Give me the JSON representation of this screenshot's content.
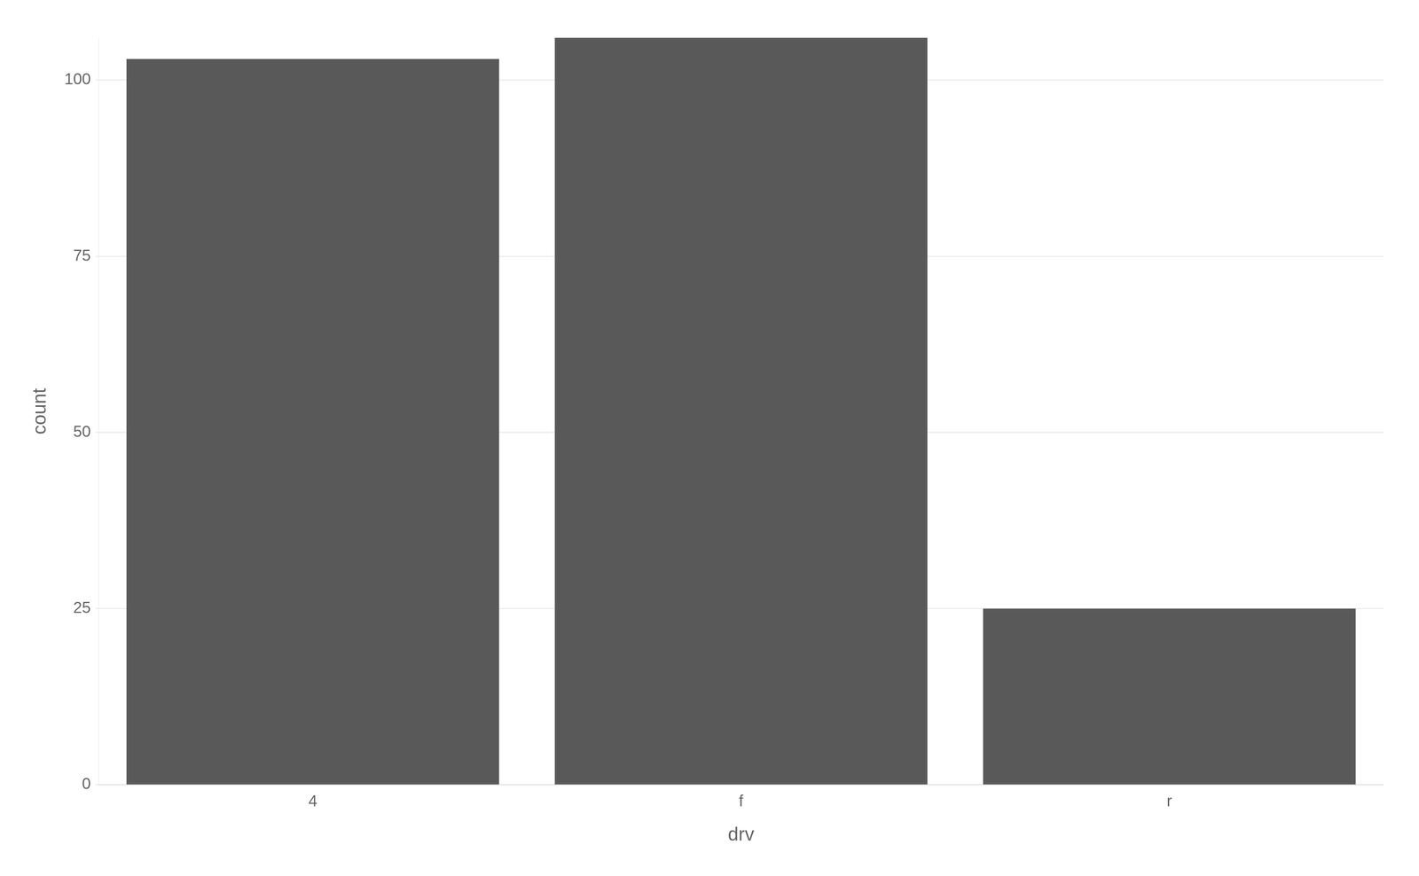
{
  "chart_data": {
    "type": "bar",
    "categories": [
      "4",
      "f",
      "r"
    ],
    "values": [
      103,
      106,
      25
    ],
    "color": "#595959",
    "xlabel": "drv",
    "ylabel": "count",
    "ylim": [
      0,
      106
    ],
    "yticks": [
      0,
      25,
      50,
      75,
      100
    ],
    "grid": true
  }
}
